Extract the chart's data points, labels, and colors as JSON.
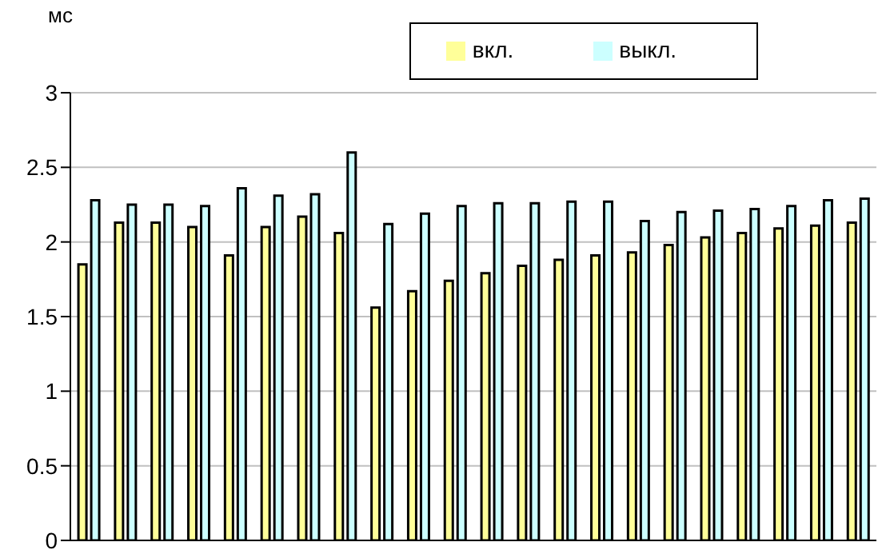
{
  "chart_data": {
    "type": "bar",
    "ylabel": "мс",
    "categories": [
      null,
      null,
      null,
      null,
      null,
      null,
      null,
      null,
      null,
      null,
      null,
      null,
      null,
      null,
      null,
      null,
      null,
      null,
      null,
      null,
      null,
      null
    ],
    "series": [
      {
        "name": "вкл.",
        "color": "#ffff99",
        "values": [
          1.85,
          2.13,
          2.13,
          2.1,
          1.91,
          2.1,
          2.17,
          2.06,
          1.56,
          1.67,
          1.74,
          1.79,
          1.84,
          1.88,
          1.91,
          1.93,
          1.98,
          2.03,
          2.06,
          2.09,
          2.11,
          2.13
        ]
      },
      {
        "name": "выкл.",
        "color": "#ccffff",
        "values": [
          2.28,
          2.25,
          2.25,
          2.24,
          2.36,
          2.31,
          2.32,
          2.6,
          2.12,
          2.19,
          2.24,
          2.26,
          2.26,
          2.27,
          2.27,
          2.14,
          2.2,
          2.21,
          2.22,
          2.24,
          2.28,
          2.29
        ]
      }
    ],
    "ylim": [
      0,
      3
    ],
    "yticks": [
      0,
      0.5,
      1,
      1.5,
      2,
      2.5,
      3
    ],
    "grid": "y",
    "legend": "top right"
  }
}
